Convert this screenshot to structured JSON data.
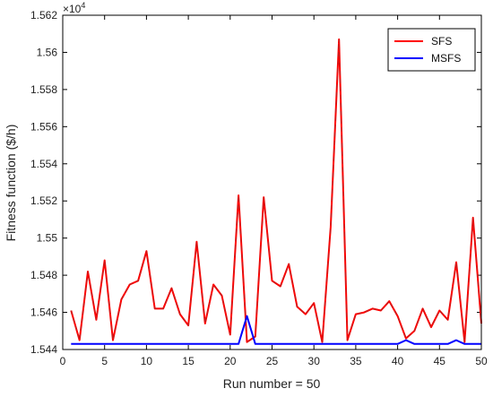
{
  "chart_data": {
    "type": "line",
    "title": "",
    "xlabel": "Run number = 50",
    "ylabel": "Fitness function ($/h)",
    "xlim": [
      0,
      50
    ],
    "ylim": [
      15440,
      15620
    ],
    "y_exponent_label": "×10",
    "y_exponent_power": "4",
    "x_ticks": [
      0,
      5,
      10,
      15,
      20,
      25,
      30,
      35,
      40,
      45,
      50
    ],
    "x_tick_labels": [
      "0",
      "5",
      "10",
      "15",
      "20",
      "25",
      "30",
      "35",
      "40",
      "45",
      "50"
    ],
    "y_ticks": [
      15440,
      15460,
      15480,
      15500,
      15520,
      15540,
      15560,
      15580,
      15600,
      15620
    ],
    "y_tick_labels": [
      "1.544",
      "1.546",
      "1.548",
      "1.55",
      "1.552",
      "1.554",
      "1.556",
      "1.558",
      "1.56",
      "1.562"
    ],
    "grid": false,
    "legend_position": "top-right",
    "x": [
      1,
      2,
      3,
      4,
      5,
      6,
      7,
      8,
      9,
      10,
      11,
      12,
      13,
      14,
      15,
      16,
      17,
      18,
      19,
      20,
      21,
      22,
      23,
      24,
      25,
      26,
      27,
      28,
      29,
      30,
      31,
      32,
      33,
      34,
      35,
      36,
      37,
      38,
      39,
      40,
      41,
      42,
      43,
      44,
      45,
      46,
      47,
      48,
      49,
      50
    ],
    "series": [
      {
        "name": "SFS",
        "color": "#ff0000",
        "values": [
          15461,
          15445,
          15482,
          15456,
          15488,
          15445,
          15467,
          15475,
          15477,
          15493,
          15462,
          15462,
          15473,
          15459,
          15453,
          15498,
          15454,
          15475,
          15469,
          15448,
          15523,
          15444,
          15447,
          15522,
          15477,
          15474,
          15486,
          15463,
          15459,
          15465,
          15444,
          15506,
          15607,
          15445,
          15459,
          15460,
          15462,
          15461,
          15466,
          15458,
          15446,
          15450,
          15462,
          15452,
          15461,
          15456,
          15487,
          15444,
          15511,
          15454
        ]
      },
      {
        "name": "MSFS",
        "color": "#0000ff",
        "values": [
          15443,
          15443,
          15443,
          15443,
          15443,
          15443,
          15443,
          15443,
          15443,
          15443,
          15443,
          15443,
          15443,
          15443,
          15443,
          15443,
          15443,
          15443,
          15443,
          15443,
          15443,
          15458,
          15443,
          15443,
          15443,
          15443,
          15443,
          15443,
          15443,
          15443,
          15443,
          15443,
          15443,
          15443,
          15443,
          15443,
          15443,
          15443,
          15443,
          15443,
          15445,
          15443,
          15443,
          15443,
          15443,
          15443,
          15445,
          15443,
          15443,
          15443
        ]
      }
    ]
  }
}
